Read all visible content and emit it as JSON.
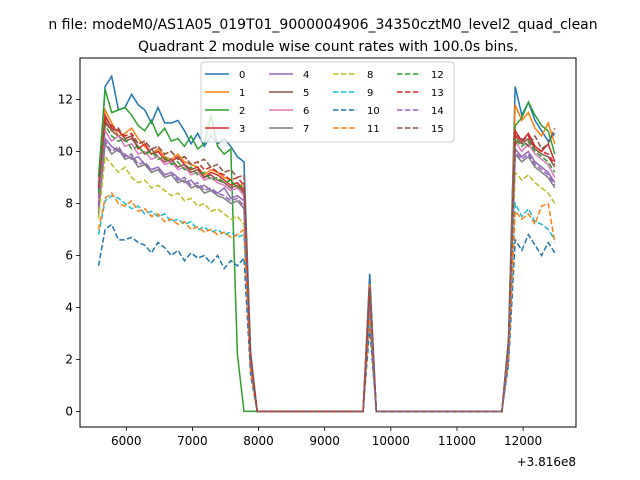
{
  "figure": {
    "suptitle": "n file: modeM0/AS1A05_019T01_9000004906_34350cztM0_level2_quad_clean",
    "title": "Quadrant 2 module wise count rates with 100.0s bins.",
    "x_offset_label": "+3.816e8"
  },
  "chart_data": {
    "type": "line",
    "title": "Quadrant 2 module wise count rates with 100.0s bins.",
    "xlabel": "",
    "ylabel": "",
    "x_offset": 381600000,
    "xlim": [
      5300,
      12800
    ],
    "ylim": [
      -0.6,
      13.6
    ],
    "xticks": [
      6000,
      7000,
      8000,
      9000,
      10000,
      11000,
      12000
    ],
    "yticks": [
      0,
      2,
      4,
      6,
      8,
      10,
      12
    ],
    "legend_position": "top-center",
    "x": [
      5580,
      5680,
      5780,
      5880,
      5980,
      6080,
      6180,
      6280,
      6380,
      6480,
      6580,
      6680,
      6780,
      6880,
      6980,
      7080,
      7180,
      7280,
      7380,
      7480,
      7580,
      7680,
      7780,
      7880,
      7980,
      8080,
      8180,
      8280,
      8380,
      8480,
      8580,
      8680,
      8780,
      8880,
      8980,
      9080,
      9180,
      9280,
      9380,
      9480,
      9580,
      9680,
      9780,
      9880,
      9980,
      10080,
      10180,
      10280,
      10380,
      10480,
      10580,
      10680,
      10780,
      10880,
      10980,
      11080,
      11180,
      11280,
      11380,
      11480,
      11580,
      11680,
      11780,
      11880,
      11980,
      12080,
      12180,
      12280,
      12380,
      12480
    ],
    "series": [
      {
        "name": "0",
        "color": "#1f77b4",
        "dash": false,
        "values": [
          8.5,
          12.5,
          12.9,
          11.6,
          11.7,
          12.2,
          11.8,
          11.6,
          11.1,
          11.7,
          11.1,
          11.1,
          11.2,
          10.8,
          10.3,
          10.7,
          10.2,
          10.6,
          10.3,
          10.5,
          10.2,
          9.8,
          9.6,
          2.3,
          0,
          0,
          0,
          0,
          0,
          0,
          0,
          0,
          0,
          0,
          0,
          0,
          0,
          0,
          0,
          0,
          0,
          5.3,
          0,
          0,
          0,
          0,
          0,
          0,
          0,
          0,
          0,
          0,
          0,
          0,
          0,
          0,
          0,
          0,
          0,
          0,
          0,
          0,
          2.8,
          12.5,
          11.4,
          11.9,
          11.2,
          10.8,
          10.4,
          10.7
        ]
      },
      {
        "name": "1",
        "color": "#ff7f0e",
        "dash": false,
        "values": [
          8.2,
          11.6,
          11.1,
          10.6,
          10.7,
          10.9,
          10.5,
          10.2,
          9.9,
          10.1,
          9.8,
          9.7,
          9.9,
          9.6,
          9.5,
          9.4,
          9.1,
          9.3,
          9.2,
          9.0,
          8.9,
          8.6,
          8.8,
          2.1,
          0,
          0,
          0,
          0,
          0,
          0,
          0,
          0,
          0,
          0,
          0,
          0,
          0,
          0,
          0,
          0,
          0,
          4.9,
          0,
          0,
          0,
          0,
          0,
          0,
          0,
          0,
          0,
          0,
          0,
          0,
          0,
          0,
          0,
          0,
          0,
          0,
          0,
          0,
          2.6,
          11.8,
          11.2,
          11.5,
          10.9,
          10.6,
          11.1,
          10.3
        ]
      },
      {
        "name": "2",
        "color": "#2ca02c",
        "dash": false,
        "values": [
          9.0,
          12.4,
          11.5,
          11.6,
          11.7,
          11.4,
          11.0,
          10.8,
          11.2,
          10.6,
          10.9,
          10.4,
          10.5,
          10.2,
          10.6,
          10.1,
          10.3,
          11.4,
          10.2,
          9.9,
          10.1,
          2.2,
          0,
          0,
          0,
          0,
          0,
          0,
          0,
          0,
          0,
          0,
          0,
          0,
          0,
          0,
          0,
          0,
          0,
          0,
          0,
          4.7,
          0,
          0,
          0,
          0,
          0,
          0,
          0,
          0,
          0,
          0,
          0,
          0,
          0,
          0,
          0,
          0,
          0,
          0,
          0,
          0,
          2.7,
          11.0,
          11.3,
          11.9,
          11.4,
          11.0,
          10.8,
          9.9
        ]
      },
      {
        "name": "3",
        "color": "#d62728",
        "dash": false,
        "values": [
          8.0,
          11.4,
          10.9,
          10.8,
          10.5,
          10.6,
          10.1,
          10.3,
          9.9,
          10.0,
          9.7,
          9.6,
          9.8,
          9.5,
          9.3,
          9.4,
          9.0,
          9.2,
          9.1,
          8.9,
          8.7,
          8.8,
          8.5,
          2.0,
          0,
          0,
          0,
          0,
          0,
          0,
          0,
          0,
          0,
          0,
          0,
          0,
          0,
          0,
          0,
          0,
          0,
          4.5,
          0,
          0,
          0,
          0,
          0,
          0,
          0,
          0,
          0,
          0,
          0,
          0,
          0,
          0,
          0,
          0,
          0,
          0,
          0,
          0,
          2.5,
          10.8,
          10.4,
          10.7,
          10.2,
          10.0,
          10.3,
          9.6
        ]
      },
      {
        "name": "4",
        "color": "#9467bd",
        "dash": false,
        "values": [
          7.8,
          10.5,
          10.2,
          10.0,
          9.9,
          9.7,
          9.8,
          9.5,
          9.3,
          9.4,
          9.1,
          9.2,
          9.0,
          8.8,
          8.9,
          8.6,
          8.7,
          8.5,
          8.4,
          8.6,
          8.2,
          8.3,
          8.1,
          1.9,
          0,
          0,
          0,
          0,
          0,
          0,
          0,
          0,
          0,
          0,
          0,
          0,
          0,
          0,
          0,
          0,
          0,
          4.2,
          0,
          0,
          0,
          0,
          0,
          0,
          0,
          0,
          0,
          0,
          0,
          0,
          0,
          0,
          0,
          0,
          0,
          0,
          0,
          0,
          2.4,
          10.1,
          9.8,
          10.0,
          9.6,
          9.4,
          9.2,
          8.8
        ]
      },
      {
        "name": "5",
        "color": "#8c564b",
        "dash": false,
        "values": [
          8.3,
          11.2,
          10.8,
          10.6,
          10.4,
          10.5,
          10.2,
          9.9,
          10.1,
          9.8,
          9.6,
          9.7,
          9.4,
          9.5,
          9.2,
          9.3,
          9.0,
          9.1,
          8.9,
          8.8,
          8.6,
          8.7,
          8.4,
          2.0,
          0,
          0,
          0,
          0,
          0,
          0,
          0,
          0,
          0,
          0,
          0,
          0,
          0,
          0,
          0,
          0,
          0,
          4.6,
          0,
          0,
          0,
          0,
          0,
          0,
          0,
          0,
          0,
          0,
          0,
          0,
          0,
          0,
          0,
          0,
          0,
          0,
          0,
          0,
          2.5,
          10.6,
          10.3,
          10.5,
          10.1,
          9.9,
          9.8,
          9.4
        ]
      },
      {
        "name": "6",
        "color": "#e377c2",
        "dash": false,
        "values": [
          8.1,
          10.8,
          10.4,
          10.6,
          10.2,
          10.3,
          9.9,
          10.0,
          9.7,
          9.8,
          9.5,
          9.6,
          9.3,
          9.4,
          9.1,
          9.2,
          8.9,
          9.0,
          8.8,
          8.7,
          8.5,
          8.6,
          8.3,
          2.0,
          0,
          0,
          0,
          0,
          0,
          0,
          0,
          0,
          0,
          0,
          0,
          0,
          0,
          0,
          0,
          0,
          0,
          4.4,
          0,
          0,
          0,
          0,
          0,
          0,
          0,
          0,
          0,
          0,
          0,
          0,
          0,
          0,
          0,
          0,
          0,
          0,
          0,
          0,
          2.4,
          10.4,
          10.0,
          10.3,
          9.9,
          9.7,
          9.5,
          9.0
        ]
      },
      {
        "name": "7",
        "color": "#7f7f7f",
        "dash": false,
        "values": [
          7.6,
          10.3,
          9.9,
          10.1,
          9.7,
          9.8,
          9.4,
          9.5,
          9.2,
          9.3,
          9.0,
          9.1,
          8.8,
          8.9,
          8.6,
          8.7,
          8.4,
          8.5,
          8.3,
          8.2,
          8.0,
          8.1,
          7.8,
          1.8,
          0,
          0,
          0,
          0,
          0,
          0,
          0,
          0,
          0,
          0,
          0,
          0,
          0,
          0,
          0,
          0,
          0,
          4.1,
          0,
          0,
          0,
          0,
          0,
          0,
          0,
          0,
          0,
          0,
          0,
          0,
          0,
          0,
          0,
          0,
          0,
          0,
          0,
          0,
          2.3,
          9.9,
          9.6,
          9.8,
          9.4,
          9.2,
          9.0,
          8.6
        ]
      },
      {
        "name": "8",
        "color": "#bcbd22",
        "dash": true,
        "values": [
          7.4,
          9.8,
          9.5,
          9.2,
          9.4,
          9.0,
          8.8,
          8.9,
          8.6,
          8.7,
          8.5,
          8.3,
          8.4,
          8.1,
          8.2,
          7.9,
          8.0,
          7.7,
          7.8,
          7.6,
          7.4,
          7.5,
          7.2,
          1.7,
          0,
          0,
          0,
          0,
          0,
          0,
          0,
          0,
          0,
          0,
          0,
          0,
          0,
          0,
          0,
          0,
          0,
          3.9,
          0,
          0,
          0,
          0,
          0,
          0,
          0,
          0,
          0,
          0,
          0,
          0,
          0,
          0,
          0,
          0,
          0,
          0,
          0,
          0,
          2.2,
          9.2,
          8.9,
          9.1,
          8.8,
          8.6,
          8.4,
          8.0
        ]
      },
      {
        "name": "9",
        "color": "#17becf",
        "dash": true,
        "values": [
          6.8,
          8.1,
          8.3,
          8.2,
          8.0,
          7.8,
          7.9,
          7.6,
          7.7,
          7.5,
          7.6,
          7.3,
          7.4,
          7.2,
          7.3,
          7.0,
          7.1,
          6.9,
          7.0,
          6.8,
          6.9,
          6.7,
          6.8,
          1.6,
          0,
          0,
          0,
          0,
          0,
          0,
          0,
          0,
          0,
          0,
          0,
          0,
          0,
          0,
          0,
          0,
          0,
          3.6,
          0,
          0,
          0,
          0,
          0,
          0,
          0,
          0,
          0,
          0,
          0,
          0,
          0,
          0,
          0,
          0,
          0,
          0,
          0,
          0,
          2.0,
          8.0,
          7.5,
          7.8,
          7.3,
          7.2,
          7.0,
          6.6
        ]
      },
      {
        "name": "10",
        "color": "#1f77b4",
        "dash": true,
        "values": [
          5.6,
          7.0,
          7.2,
          6.6,
          6.6,
          6.7,
          6.5,
          6.4,
          6.1,
          6.5,
          6.3,
          6.0,
          6.2,
          5.8,
          6.1,
          5.9,
          6.0,
          5.7,
          6.0,
          5.5,
          5.8,
          5.6,
          5.9,
          1.4,
          0,
          0,
          0,
          0,
          0,
          0,
          0,
          0,
          0,
          0,
          0,
          0,
          0,
          0,
          0,
          0,
          0,
          3.2,
          0,
          0,
          0,
          0,
          0,
          0,
          0,
          0,
          0,
          0,
          0,
          0,
          0,
          0,
          0,
          0,
          0,
          0,
          0,
          0,
          1.8,
          6.6,
          6.2,
          6.8,
          6.4,
          6.0,
          6.5,
          6.1
        ]
      },
      {
        "name": "11",
        "color": "#ff7f0e",
        "dash": true,
        "values": [
          7.0,
          8.2,
          8.4,
          8.0,
          7.9,
          8.1,
          7.7,
          7.8,
          7.5,
          7.6,
          7.3,
          7.4,
          7.2,
          7.3,
          7.0,
          7.1,
          6.9,
          7.0,
          6.8,
          6.9,
          6.7,
          6.8,
          7.0,
          1.6,
          0,
          0,
          0,
          0,
          0,
          0,
          0,
          0,
          0,
          0,
          0,
          0,
          0,
          0,
          0,
          0,
          0,
          3.7,
          0,
          0,
          0,
          0,
          0,
          0,
          0,
          0,
          0,
          0,
          0,
          0,
          0,
          0,
          0,
          0,
          0,
          0,
          0,
          0,
          2.0,
          7.7,
          7.4,
          7.6,
          7.2,
          7.9,
          8.0,
          6.5
        ]
      },
      {
        "name": "12",
        "color": "#2ca02c",
        "dash": true,
        "values": [
          8.4,
          11.0,
          10.6,
          10.4,
          10.5,
          10.1,
          10.2,
          9.9,
          10.0,
          9.7,
          9.8,
          9.5,
          9.6,
          9.3,
          9.4,
          9.1,
          9.2,
          8.9,
          9.0,
          8.8,
          8.9,
          8.6,
          8.7,
          2.0,
          0,
          0,
          0,
          0,
          0,
          0,
          0,
          0,
          0,
          0,
          0,
          0,
          0,
          0,
          0,
          0,
          0,
          4.6,
          0,
          0,
          0,
          0,
          0,
          0,
          0,
          0,
          0,
          0,
          0,
          0,
          0,
          0,
          0,
          0,
          0,
          0,
          0,
          0,
          2.5,
          10.5,
          10.2,
          10.4,
          10.0,
          9.8,
          9.6,
          9.2
        ]
      },
      {
        "name": "13",
        "color": "#d62728",
        "dash": true,
        "values": [
          8.6,
          11.3,
          11.0,
          10.8,
          10.6,
          10.7,
          10.3,
          10.4,
          10.1,
          10.2,
          9.9,
          10.0,
          9.7,
          9.8,
          9.5,
          9.6,
          9.3,
          9.4,
          9.2,
          9.1,
          8.9,
          9.0,
          8.7,
          2.1,
          0,
          0,
          0,
          0,
          0,
          0,
          0,
          0,
          0,
          0,
          0,
          0,
          0,
          0,
          0,
          0,
          0,
          4.8,
          0,
          0,
          0,
          0,
          0,
          0,
          0,
          0,
          0,
          0,
          0,
          0,
          0,
          0,
          0,
          0,
          0,
          0,
          0,
          0,
          2.6,
          10.7,
          10.4,
          10.6,
          10.2,
          10.0,
          9.9,
          9.5
        ]
      },
      {
        "name": "14",
        "color": "#9467bd",
        "dash": true,
        "values": [
          7.9,
          10.4,
          10.0,
          10.2,
          9.8,
          9.9,
          9.5,
          9.6,
          9.3,
          9.4,
          9.1,
          9.2,
          8.9,
          9.0,
          8.7,
          8.8,
          8.5,
          8.6,
          8.4,
          8.3,
          8.1,
          8.2,
          7.9,
          1.9,
          0,
          0,
          0,
          0,
          0,
          0,
          0,
          0,
          0,
          0,
          0,
          0,
          0,
          0,
          0,
          0,
          0,
          4.3,
          0,
          0,
          0,
          0,
          0,
          0,
          0,
          0,
          0,
          0,
          0,
          0,
          0,
          0,
          0,
          0,
          0,
          0,
          0,
          0,
          2.4,
          10.0,
          9.7,
          9.9,
          9.5,
          9.3,
          9.1,
          8.7
        ]
      },
      {
        "name": "15",
        "color": "#8c564b",
        "dash": true,
        "values": [
          8.7,
          11.1,
          10.8,
          10.9,
          10.5,
          10.6,
          10.3,
          10.4,
          10.1,
          10.2,
          9.9,
          10.0,
          9.7,
          9.8,
          9.5,
          9.6,
          9.7,
          9.4,
          9.5,
          9.2,
          9.3,
          9.0,
          9.1,
          2.1,
          0,
          0,
          0,
          0,
          0,
          0,
          0,
          0,
          0,
          0,
          0,
          0,
          0,
          0,
          0,
          0,
          0,
          4.7,
          0,
          0,
          0,
          0,
          0,
          0,
          0,
          0,
          0,
          0,
          0,
          0,
          0,
          0,
          0,
          0,
          0,
          0,
          0,
          0,
          2.6,
          10.3,
          10.5,
          10.2,
          10.6,
          10.1,
          10.3,
          10.9
        ]
      }
    ]
  }
}
